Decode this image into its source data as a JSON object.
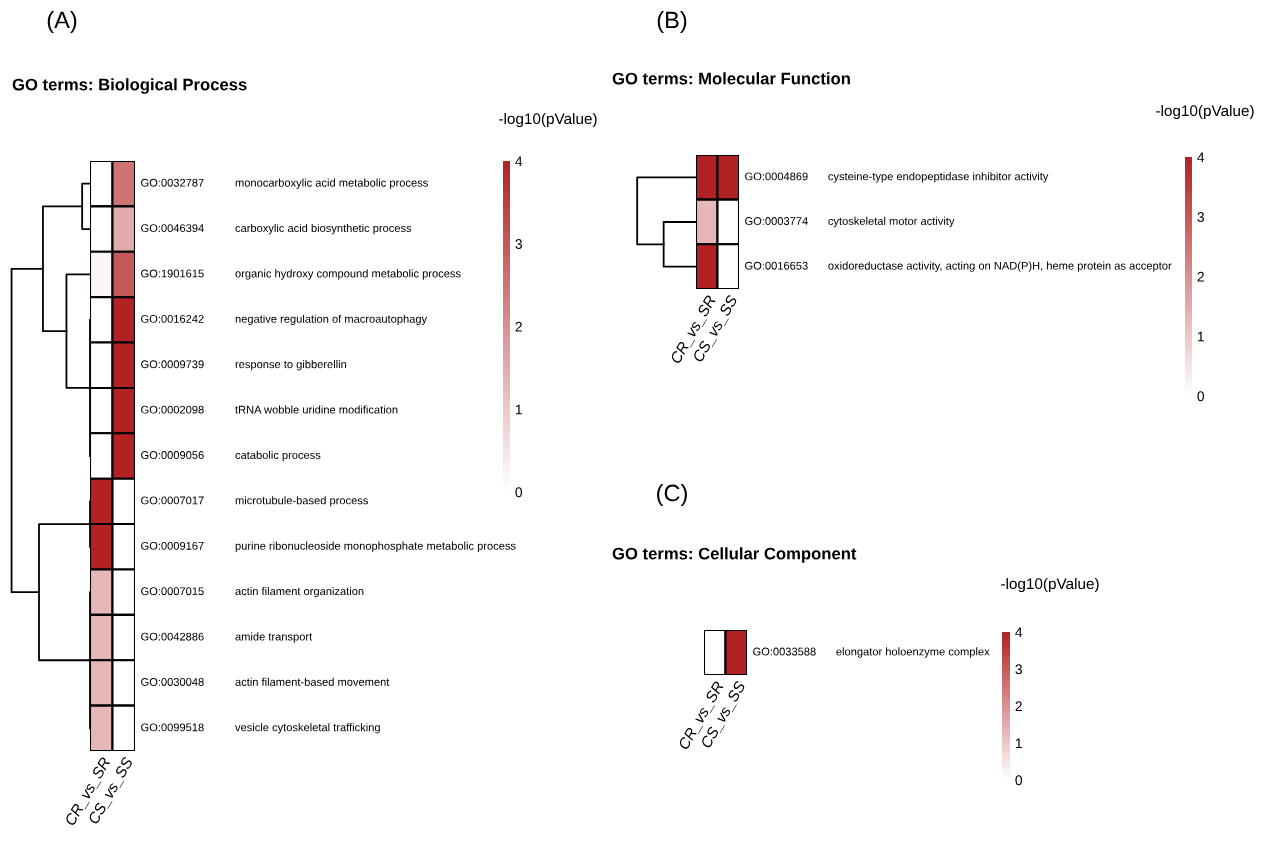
{
  "chart_data": [
    {
      "type": "heatmap",
      "title": "GO terms: Biological Process",
      "annotations": [
        "(A)"
      ],
      "clabel": "-log10(pValue)",
      "categories": [
        "CR_vs_SR",
        "CS_vs_SS"
      ],
      "y_categories": [
        "GO:0032787",
        "GO:0046394",
        "GO:1901615",
        "GO:0016242",
        "GO:0009739",
        "GO:0002098",
        "GO:0009056",
        "GO:0007017",
        "GO:0009167",
        "GO:0007015",
        "GO:0042886",
        "GO:0030048",
        "GO:0099518"
      ],
      "y2_categories": [
        "monocarboxylic acid metabolic process",
        "carboxylic acid biosynthetic process",
        "organic hydroxy compound metabolic process",
        "negative regulation of macroautophagy",
        "response to gibberellin",
        "tRNA wobble uridine modification",
        "catabolic process",
        "microtubule-based process",
        "purine ribonucleoside monophosphate metabolic process",
        "actin filament organization",
        "amide transport",
        "actin filament-based movement",
        "vesicle cytoskeletal trafficking"
      ],
      "cells": [
        [
          0,
          2.5
        ],
        [
          0,
          1.5
        ],
        [
          0.2,
          3
        ],
        [
          0,
          4
        ],
        [
          0,
          4
        ],
        [
          0,
          4
        ],
        [
          0,
          4
        ],
        [
          4,
          0
        ],
        [
          4,
          0
        ],
        [
          1.3,
          0
        ],
        [
          1.3,
          0
        ],
        [
          1.3,
          0
        ],
        [
          1.3,
          0
        ]
      ],
      "clim": [
        0,
        4
      ],
      "cticks": [
        0,
        1,
        2,
        3,
        4
      ]
    },
    {
      "type": "heatmap",
      "title": "GO terms: Molecular Function",
      "annotations": [
        "(B)"
      ],
      "clabel": "-log10(pValue)",
      "categories": [
        "CR_vs_SR",
        "CS_vs_SS"
      ],
      "y_categories": [
        "GO:0004869",
        "GO:0003774",
        "GO:0016653"
      ],
      "y2_categories": [
        "cysteine-type endopeptidase inhibitor activity",
        "cytoskeletal motor activity",
        "oxidoreductase activity, acting on NAD(P)H, heme protein as acceptor"
      ],
      "cells": [
        [
          4,
          4
        ],
        [
          1.3,
          0
        ],
        [
          4,
          0
        ]
      ],
      "clim": [
        0,
        4
      ],
      "cticks": [
        0,
        1,
        2,
        3,
        4
      ]
    },
    {
      "type": "heatmap",
      "title": "GO terms: Cellular Component",
      "annotations": [
        "(C)"
      ],
      "clabel": "-log10(pValue)",
      "categories": [
        "CR_vs_SR",
        "CS_vs_SS"
      ],
      "y_categories": [
        "GO:0033588"
      ],
      "y2_categories": [
        "elongator holoenzyme complex"
      ],
      "cells": [
        [
          0,
          4
        ]
      ],
      "clim": [
        0,
        4
      ],
      "cticks": [
        0,
        1,
        2,
        3,
        4
      ]
    }
  ]
}
